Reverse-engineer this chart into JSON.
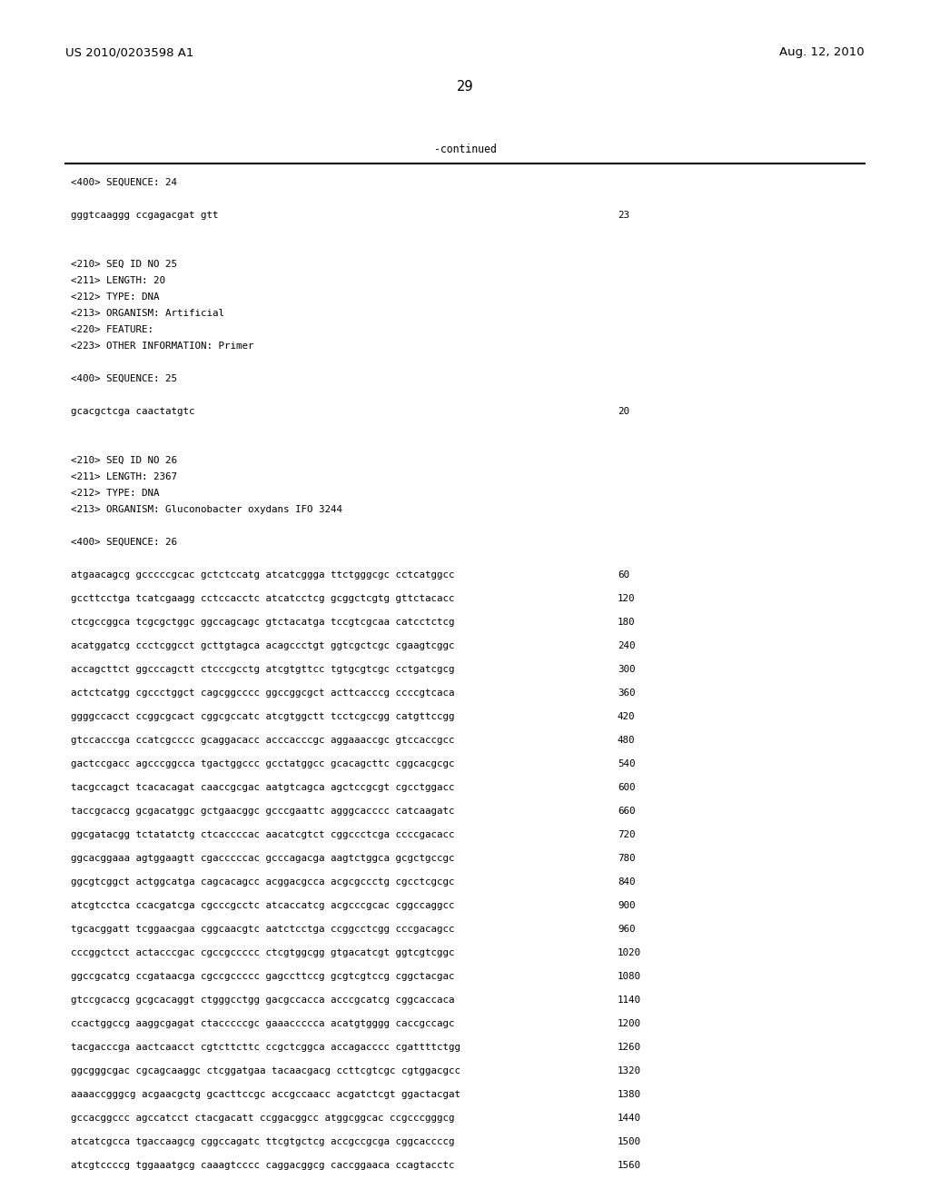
{
  "header_left": "US 2010/0203598 A1",
  "header_right": "Aug. 12, 2010",
  "page_number": "29",
  "continued_text": "-continued",
  "background_color": "#ffffff",
  "text_color": "#000000",
  "content_lines": [
    {
      "text": "<400> SEQUENCE: 24",
      "type": "header"
    },
    {
      "text": "",
      "type": "blank"
    },
    {
      "text": "gggtcaaggg ccgagacgat gtt",
      "type": "seq",
      "num": "23"
    },
    {
      "text": "",
      "type": "blank"
    },
    {
      "text": "",
      "type": "blank"
    },
    {
      "text": "<210> SEQ ID NO 25",
      "type": "header"
    },
    {
      "text": "<211> LENGTH: 20",
      "type": "header"
    },
    {
      "text": "<212> TYPE: DNA",
      "type": "header"
    },
    {
      "text": "<213> ORGANISM: Artificial",
      "type": "header"
    },
    {
      "text": "<220> FEATURE:",
      "type": "header"
    },
    {
      "text": "<223> OTHER INFORMATION: Primer",
      "type": "header"
    },
    {
      "text": "",
      "type": "blank"
    },
    {
      "text": "<400> SEQUENCE: 25",
      "type": "header"
    },
    {
      "text": "",
      "type": "blank"
    },
    {
      "text": "gcacgctcga caactatgtc",
      "type": "seq",
      "num": "20"
    },
    {
      "text": "",
      "type": "blank"
    },
    {
      "text": "",
      "type": "blank"
    },
    {
      "text": "<210> SEQ ID NO 26",
      "type": "header"
    },
    {
      "text": "<211> LENGTH: 2367",
      "type": "header"
    },
    {
      "text": "<212> TYPE: DNA",
      "type": "header"
    },
    {
      "text": "<213> ORGANISM: Gluconobacter oxydans IFO 3244",
      "type": "header"
    },
    {
      "text": "",
      "type": "blank"
    },
    {
      "text": "<400> SEQUENCE: 26",
      "type": "header"
    },
    {
      "text": "",
      "type": "blank"
    },
    {
      "text": "atgaacagcg gcccccgcac gctctccatg atcatcggga ttctgggcgc cctcatggcc",
      "type": "seq",
      "num": "60"
    },
    {
      "text": "",
      "type": "blank_small"
    },
    {
      "text": "gccttcctga tcatcgaagg cctccacctc atcatcctcg gcggctcgtg gttctacacc",
      "type": "seq",
      "num": "120"
    },
    {
      "text": "",
      "type": "blank_small"
    },
    {
      "text": "ctcgccggca tcgcgctggc ggccagcagc gtctacatga tccgtcgcaa catcctctcg",
      "type": "seq",
      "num": "180"
    },
    {
      "text": "",
      "type": "blank_small"
    },
    {
      "text": "acatggatcg ccctcggcct gcttgtagca acagccctgt ggtcgctcgc cgaagtcggc",
      "type": "seq",
      "num": "240"
    },
    {
      "text": "",
      "type": "blank_small"
    },
    {
      "text": "accagcttct ggcccagctt ctcccgcctg atcgtgttcc tgtgcgtcgc cctgatcgcg",
      "type": "seq",
      "num": "300"
    },
    {
      "text": "",
      "type": "blank_small"
    },
    {
      "text": "actctcatgg cgccctggct cagcggcccc ggccggcgct acttcacccg ccccgtcaca",
      "type": "seq",
      "num": "360"
    },
    {
      "text": "",
      "type": "blank_small"
    },
    {
      "text": "ggggccacct ccggcgcact cggcgccatc atcgtggctt tcctcgccgg catgttccgg",
      "type": "seq",
      "num": "420"
    },
    {
      "text": "",
      "type": "blank_small"
    },
    {
      "text": "gtccacccga ccatcgcccc gcaggacacc acccacccgc aggaaaccgc gtccaccgcc",
      "type": "seq",
      "num": "480"
    },
    {
      "text": "",
      "type": "blank_small"
    },
    {
      "text": "gactccgacc agcccggcca tgactggccc gcctatggcc gcacagcttc cggcacgcgc",
      "type": "seq",
      "num": "540"
    },
    {
      "text": "",
      "type": "blank_small"
    },
    {
      "text": "tacgccagct tcacacagat caaccgcgac aatgtcagca agctccgcgt cgcctggacc",
      "type": "seq",
      "num": "600"
    },
    {
      "text": "",
      "type": "blank_small"
    },
    {
      "text": "taccgcaccg gcgacatggc gctgaacggc gcccgaattc agggcacccc catcaagatc",
      "type": "seq",
      "num": "660"
    },
    {
      "text": "",
      "type": "blank_small"
    },
    {
      "text": "ggcgatacgg tctatatctg ctcaccccac aacatcgtct cggccctcga ccccgacacc",
      "type": "seq",
      "num": "720"
    },
    {
      "text": "",
      "type": "blank_small"
    },
    {
      "text": "ggcacggaaa agtggaagtt cgacccccac gcccagacga aagtctggca gcgctgccgc",
      "type": "seq",
      "num": "780"
    },
    {
      "text": "",
      "type": "blank_small"
    },
    {
      "text": "ggcgtcggct actggcatga cagcacagcc acggacgcca acgcgccctg cgcctcgcgc",
      "type": "seq",
      "num": "840"
    },
    {
      "text": "",
      "type": "blank_small"
    },
    {
      "text": "atcgtcctca ccacgatcga cgcccgcctc atcaccatcg acgcccgcac cggccaggcc",
      "type": "seq",
      "num": "900"
    },
    {
      "text": "",
      "type": "blank_small"
    },
    {
      "text": "tgcacggatt tcggaacgaa cggcaacgtc aatctcctga ccggcctcgg cccgacagcc",
      "type": "seq",
      "num": "960"
    },
    {
      "text": "",
      "type": "blank_small"
    },
    {
      "text": "cccggctcct actacccgac cgccgccccc ctcgtggcgg gtgacatcgt ggtcgtcggc",
      "type": "seq",
      "num": "1020"
    },
    {
      "text": "",
      "type": "blank_small"
    },
    {
      "text": "ggccgcatcg ccgataacga cgccgccccc gagccttccg gcgtcgtccg cggctacgac",
      "type": "seq",
      "num": "1080"
    },
    {
      "text": "",
      "type": "blank_small"
    },
    {
      "text": "gtccgcaccg gcgcacaggt ctgggcctgg gacgccacca acccgcatcg cggcaccaca",
      "type": "seq",
      "num": "1140"
    },
    {
      "text": "",
      "type": "blank_small"
    },
    {
      "text": "ccactggccg aaggcgagat ctacccccgc gaaaccccca acatgtgggg caccgccagc",
      "type": "seq",
      "num": "1200"
    },
    {
      "text": "",
      "type": "blank_small"
    },
    {
      "text": "tacgacccga aactcaacct cgtcttcttc ccgctcggca accagacccc cgattttctgg",
      "type": "seq",
      "num": "1260"
    },
    {
      "text": "",
      "type": "blank_small"
    },
    {
      "text": "ggcgggcgac cgcagcaaggc ctcggatgaa tacaacgacg ccttcgtcgc cgtggacgcc",
      "type": "seq",
      "num": "1320"
    },
    {
      "text": "",
      "type": "blank_small"
    },
    {
      "text": "aaaaccgggcg acgaacgctg gcacttccgc accgccaacc acgatctcgt ggactacgat",
      "type": "seq",
      "num": "1380"
    },
    {
      "text": "",
      "type": "blank_small"
    },
    {
      "text": "gccacggccc agccatcct ctacgacatt ccggacggcc atggcggcac ccgcccgggcg",
      "type": "seq",
      "num": "1440"
    },
    {
      "text": "",
      "type": "blank_small"
    },
    {
      "text": "atcatcgcca tgaccaagcg cggccagatc ttcgtgctcg accgccgcga cggcaccccg",
      "type": "seq",
      "num": "1500"
    },
    {
      "text": "",
      "type": "blank_small"
    },
    {
      "text": "atcgtccccg tggaaatgcg caaagtcccc caggacggcg caccggaaca ccagtacctc",
      "type": "seq",
      "num": "1560"
    }
  ]
}
